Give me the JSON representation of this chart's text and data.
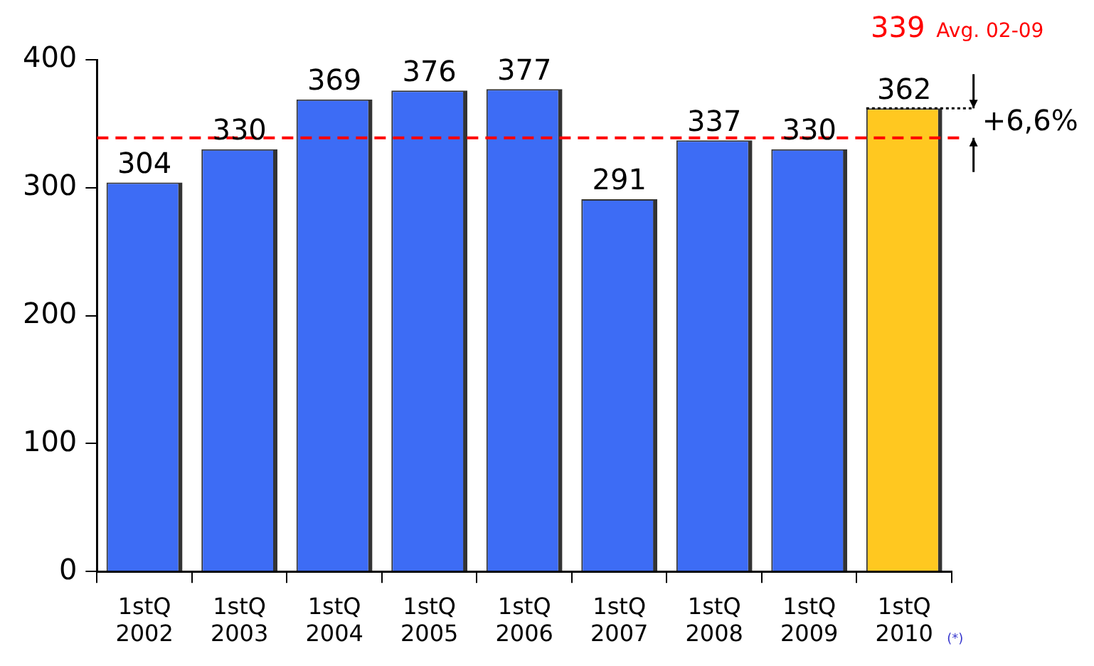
{
  "chart_data": {
    "type": "bar",
    "categories": [
      "1stQ\n2002",
      "1stQ\n2003",
      "1stQ\n2004",
      "1stQ\n2005",
      "1stQ\n2006",
      "1stQ\n2007",
      "1stQ\n2008",
      "1stQ\n2009",
      "1stQ\n2010"
    ],
    "values": [
      304,
      330,
      369,
      376,
      377,
      291,
      337,
      330,
      362
    ],
    "colors": [
      "#3d6cf5",
      "#3d6cf5",
      "#3d6cf5",
      "#3d6cf5",
      "#3d6cf5",
      "#3d6cf5",
      "#3d6cf5",
      "#3d6cf5",
      "#ffc820"
    ],
    "ylim": [
      0,
      400
    ],
    "yticks": [
      0,
      100,
      200,
      300,
      400
    ],
    "grid": false,
    "legend": false,
    "data_labels": true,
    "ref_lines": [
      {
        "axis": "y",
        "value": 339,
        "label": "339 Avg. 02-09",
        "color": "#ff0000",
        "line_style": "dashed"
      }
    ],
    "annotations": [
      {
        "text": "+6,6%",
        "x": "1stQ\n2010",
        "y": 362
      },
      "(*)"
    ]
  }
}
